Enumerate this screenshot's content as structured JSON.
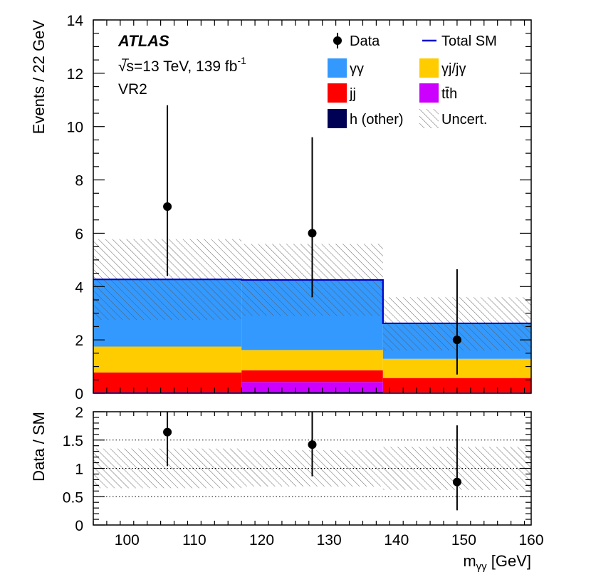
{
  "chart_data": [
    {
      "type": "bar",
      "panel": "main",
      "ylabel": "Events / 22 GeV",
      "xlim": [
        95,
        160
      ],
      "ylim": [
        0,
        14
      ],
      "yticks": [
        "0",
        "2",
        "4",
        "6",
        "8",
        "10",
        "12",
        "14"
      ],
      "bins": [
        [
          95,
          117
        ],
        [
          117,
          138
        ],
        [
          138,
          160
        ]
      ],
      "stacked": true,
      "series": [
        {
          "name": "h (other)",
          "key": "h_other",
          "color": "#000055",
          "values": [
            0.03,
            0.04,
            0.02
          ]
        },
        {
          "name": "tt̄h",
          "key": "tth",
          "color": "#cc00ff",
          "values": [
            0.01,
            0.38,
            0.01
          ]
        },
        {
          "name": "jj",
          "key": "jj",
          "color": "#ff0000",
          "values": [
            0.74,
            0.44,
            0.54
          ]
        },
        {
          "name": "γj/jγ",
          "key": "gj",
          "color": "#ffcc00",
          "values": [
            0.97,
            0.76,
            0.72
          ]
        },
        {
          "name": "γγ",
          "key": "gg",
          "color": "#3399ff",
          "values": [
            2.52,
            2.63,
            1.33
          ]
        }
      ],
      "total_sm": {
        "name": "Total SM",
        "color": "#0000cc",
        "values": [
          4.27,
          4.25,
          2.62
        ]
      },
      "uncertainty": {
        "name": "Uncert.",
        "low": [
          2.75,
          2.9,
          1.6
        ],
        "high": [
          5.78,
          5.6,
          3.6
        ]
      },
      "data": {
        "name": "Data",
        "x": [
          106,
          127.5,
          149
        ],
        "y": [
          7,
          6,
          2
        ],
        "err_low": [
          2.6,
          2.4,
          1.3
        ],
        "err_high": [
          3.8,
          3.6,
          2.65
        ]
      }
    },
    {
      "type": "scatter",
      "panel": "ratio",
      "xlabel": "m_γγ [GeV]",
      "ylabel": "Data / SM",
      "xlim": [
        95,
        160
      ],
      "ylim": [
        0,
        2
      ],
      "xticks": [
        "100",
        "110",
        "120",
        "130",
        "140",
        "150",
        "160"
      ],
      "yticks": [
        "0",
        "0.5",
        "1",
        "1.5",
        "2"
      ],
      "reference_lines": [
        0.5,
        1,
        1.5
      ],
      "uncertainty": {
        "low": [
          0.65,
          0.68,
          0.62
        ],
        "high": [
          1.35,
          1.32,
          1.38
        ]
      },
      "data": {
        "x": [
          106,
          127.5,
          149
        ],
        "y": [
          1.64,
          1.42,
          0.76
        ],
        "err_low": [
          0.6,
          0.56,
          0.5
        ],
        "err_high": [
          0.9,
          0.85,
          1.0
        ]
      }
    }
  ],
  "labels": {
    "experiment": "ATLAS",
    "energy": "√s=13 TeV, 139 fb",
    "lumi_sup": "-1",
    "region": "VR2"
  },
  "legend": {
    "data": "Data",
    "total_sm": "Total SM",
    "gg": "γγ",
    "gj": "γj/jγ",
    "jj": "jj",
    "tth": "tt̄h",
    "h_other": "h (other)",
    "uncert": "Uncert."
  },
  "axes": {
    "main_ylabel": "Events / 22 GeV",
    "ratio_ylabel": "Data / SM",
    "xlabel_main": "m",
    "xlabel_sub": "γγ",
    "xlabel_unit": " [GeV]"
  }
}
